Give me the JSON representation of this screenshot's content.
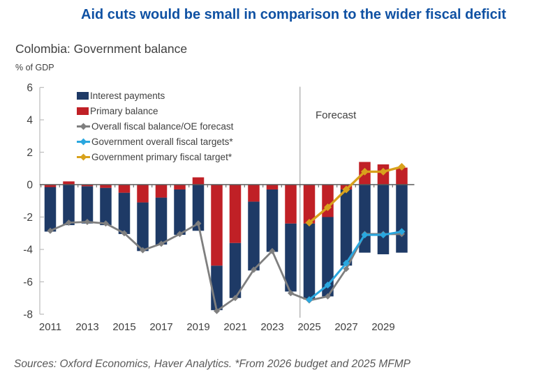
{
  "header": {
    "title": "Aid cuts would be small in comparison to the wider fiscal deficit",
    "subtitle": "Colombia: Government balance",
    "units": "% of GDP"
  },
  "plot": {
    "forecast_label": "Forecast"
  },
  "footer": {
    "source": "Sources: Oxford Economics, Haver Analytics. *From 2026 budget and 2025 MFMP"
  },
  "colors": {
    "title": "#0f51a3",
    "text": "#404040",
    "interest": "#1e3a66",
    "primary": "#c02026",
    "overall": "#7f7f7f",
    "target_overall": "#2aa7df",
    "target_primary": "#d8a21c",
    "axis_line": "#bfbfbf",
    "zero_line": "#595959",
    "forecast_line": "#a6a6a6",
    "source_text": "#595959"
  },
  "chart_data": {
    "type": "bar+line",
    "title": "Colombia: Government balance",
    "ylabel": "% of GDP",
    "ylim": [
      -8,
      6
    ],
    "yticks": [
      6,
      4,
      2,
      0,
      -2,
      -4,
      -6,
      -8
    ],
    "xlabel_ticks": [
      2011,
      2013,
      2015,
      2017,
      2019,
      2021,
      2023,
      2025,
      2027,
      2029
    ],
    "legend_position": "top-left",
    "forecast_start": 2025,
    "x": [
      2011,
      2012,
      2013,
      2014,
      2015,
      2016,
      2017,
      2018,
      2019,
      2020,
      2021,
      2022,
      2023,
      2024,
      2025,
      2026,
      2027,
      2028,
      2029,
      2030
    ],
    "series": [
      {
        "key": "interest",
        "name": "Interest payments",
        "type": "bar",
        "values": [
          -2.75,
          -2.5,
          -2.3,
          -2.3,
          -2.55,
          -3.0,
          -2.9,
          -2.8,
          -2.85,
          -2.75,
          -3.4,
          -4.25,
          -3.85,
          -4.2,
          -4.7,
          -4.9,
          -4.7,
          -4.2,
          -4.3,
          -4.2
        ]
      },
      {
        "key": "primary",
        "name": "Primary balance",
        "type": "bar",
        "values": [
          -0.15,
          0.2,
          -0.1,
          -0.2,
          -0.5,
          -1.1,
          -0.8,
          -0.3,
          0.45,
          -5.0,
          -3.6,
          -1.05,
          -0.3,
          -2.4,
          -2.4,
          -2.0,
          -0.3,
          1.4,
          1.25,
          1.05
        ]
      },
      {
        "key": "overall",
        "name": "Overall fiscal balance/OE forecast",
        "type": "line",
        "values": [
          -2.85,
          -2.35,
          -2.3,
          -2.4,
          -3.0,
          -4.05,
          -3.65,
          -3.05,
          -2.4,
          -7.8,
          -7.0,
          -5.25,
          -4.1,
          -6.7,
          -7.15,
          -6.9,
          -5.2,
          -3.05,
          -3.05,
          -3.05
        ]
      },
      {
        "key": "target_overall",
        "name": "Government overall fiscal targets*",
        "type": "line",
        "values": [
          null,
          null,
          null,
          null,
          null,
          null,
          null,
          null,
          null,
          null,
          null,
          null,
          null,
          null,
          -7.1,
          -6.2,
          -4.85,
          -3.1,
          -3.1,
          -2.9
        ]
      },
      {
        "key": "target_primary",
        "name": "Government primary fiscal target*",
        "type": "line",
        "values": [
          null,
          null,
          null,
          null,
          null,
          null,
          null,
          null,
          null,
          null,
          null,
          null,
          null,
          null,
          -2.35,
          -1.4,
          -0.3,
          0.8,
          0.8,
          1.1
        ]
      }
    ]
  }
}
